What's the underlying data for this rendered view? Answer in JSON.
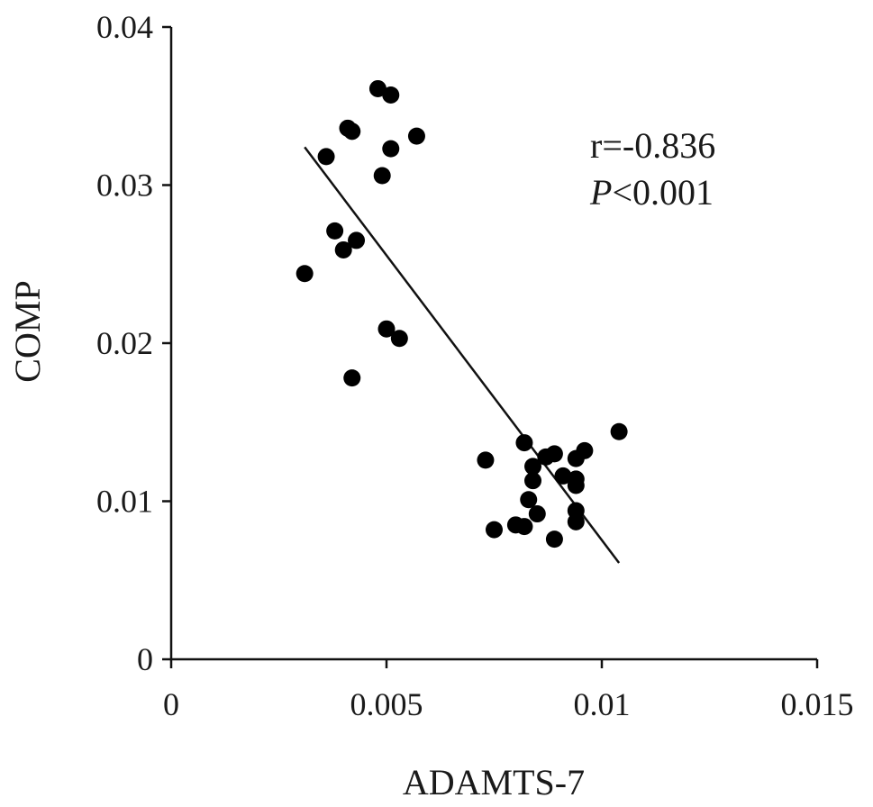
{
  "chart_data": {
    "type": "scatter",
    "xlabel": "ADAMTS-7",
    "ylabel": "COMP",
    "xlim": [
      0,
      0.015
    ],
    "ylim": [
      0,
      0.04
    ],
    "xticks": [
      0,
      0.005,
      0.01,
      0.015
    ],
    "xtick_labels": [
      "0",
      "0.005",
      "0.01",
      "0.015"
    ],
    "yticks": [
      0,
      0.01,
      0.02,
      0.03,
      0.04
    ],
    "ytick_labels": [
      "0",
      "0.01",
      "0.02",
      "0.03",
      "0.04"
    ],
    "grid": false,
    "annotations": {
      "r": "r=-0.836",
      "p_italic": "P",
      "p_rest": "<0.001"
    },
    "trendline": {
      "x": [
        0.0031,
        0.0104
      ],
      "y": [
        0.0324,
        0.0061
      ]
    },
    "points": [
      [
        0.0048,
        0.0361
      ],
      [
        0.0051,
        0.0357
      ],
      [
        0.0041,
        0.0336
      ],
      [
        0.0042,
        0.0334
      ],
      [
        0.0057,
        0.0331
      ],
      [
        0.0051,
        0.0323
      ],
      [
        0.0036,
        0.0318
      ],
      [
        0.0049,
        0.0306
      ],
      [
        0.0038,
        0.0271
      ],
      [
        0.0043,
        0.0265
      ],
      [
        0.004,
        0.0259
      ],
      [
        0.0031,
        0.0244
      ],
      [
        0.005,
        0.0209
      ],
      [
        0.0053,
        0.0203
      ],
      [
        0.0042,
        0.0178
      ],
      [
        0.0104,
        0.0144
      ],
      [
        0.0082,
        0.0137
      ],
      [
        0.0096,
        0.0132
      ],
      [
        0.0089,
        0.013
      ],
      [
        0.0087,
        0.0128
      ],
      [
        0.0094,
        0.0127
      ],
      [
        0.0073,
        0.0126
      ],
      [
        0.0084,
        0.0122
      ],
      [
        0.0091,
        0.0116
      ],
      [
        0.0094,
        0.0114
      ],
      [
        0.0084,
        0.0113
      ],
      [
        0.0094,
        0.011
      ],
      [
        0.0083,
        0.0101
      ],
      [
        0.0094,
        0.0094
      ],
      [
        0.0085,
        0.0092
      ],
      [
        0.0094,
        0.0087
      ],
      [
        0.008,
        0.0085
      ],
      [
        0.0082,
        0.0084
      ],
      [
        0.0075,
        0.0082
      ],
      [
        0.0089,
        0.0076
      ]
    ]
  }
}
